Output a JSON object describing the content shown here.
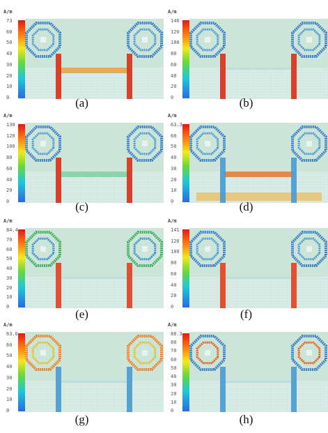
{
  "unit": "A/m",
  "colors": {
    "background": "#cde5d8",
    "high": "#e02020",
    "mid": "#ffd21e",
    "low": "#2a7fe0",
    "resonator": "#3a80c8"
  },
  "panels": [
    {
      "caption": "(a)",
      "max_label": "73",
      "ticks": [
        "60",
        "50",
        "40",
        "30",
        "20",
        "10",
        "0"
      ]
    },
    {
      "caption": "(b)",
      "max_label": "146",
      "ticks": [
        "120",
        "100",
        "80",
        "60",
        "40",
        "20",
        "0"
      ]
    },
    {
      "caption": "(c)",
      "max_label": "130",
      "ticks": [
        "120",
        "100",
        "80",
        "60",
        "40",
        "20",
        "0"
      ]
    },
    {
      "caption": "(d)",
      "max_label": "63.3",
      "ticks": [
        "60",
        "50",
        "40",
        "30",
        "20",
        "10",
        "0"
      ]
    },
    {
      "caption": "(e)",
      "max_label": "84.4",
      "ticks": [
        "70",
        "60",
        "50",
        "40",
        "30",
        "20",
        "10",
        "0"
      ]
    },
    {
      "caption": "(f)",
      "max_label": "141",
      "ticks": [
        "120",
        "100",
        "80",
        "60",
        "40",
        "20",
        "0"
      ]
    },
    {
      "caption": "(g)",
      "max_label": "63.0",
      "ticks": [
        "60",
        "50",
        "40",
        "30",
        "20",
        "10",
        "0"
      ]
    },
    {
      "caption": "(h)",
      "max_label": "88.3",
      "ticks": [
        "80",
        "70",
        "60",
        "50",
        "40",
        "30",
        "20",
        "10",
        "0"
      ]
    }
  ]
}
